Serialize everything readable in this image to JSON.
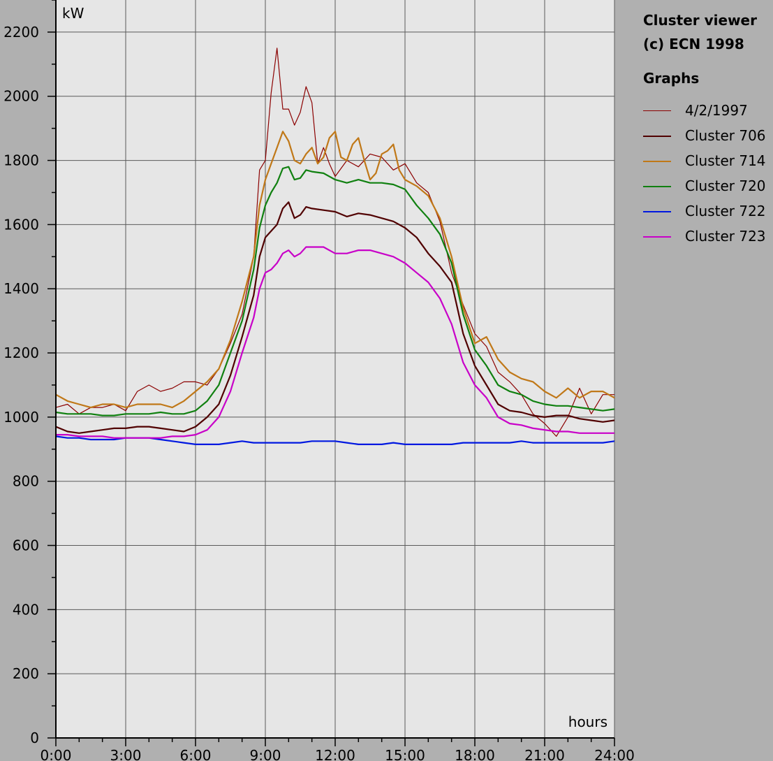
{
  "sidebar": {
    "title_line1": "Cluster viewer",
    "title_line2": "(c) ECN 1998",
    "legend_heading": "Graphs"
  },
  "chart_data": {
    "type": "line",
    "xlabel": "hours",
    "ylabel": "kW",
    "xlim": [
      0,
      24
    ],
    "ylim": [
      0,
      2300
    ],
    "grid": true,
    "legend": "right",
    "x_ticks": [
      0,
      3,
      6,
      9,
      12,
      15,
      18,
      21,
      24
    ],
    "x_tick_labels": [
      "0:00",
      "3:00",
      "6:00",
      "9:00",
      "12:00",
      "15:00",
      "18:00",
      "21:00",
      "24:00"
    ],
    "y_ticks": [
      0,
      200,
      400,
      600,
      800,
      1000,
      1200,
      1400,
      1600,
      1800,
      2000,
      2200
    ],
    "y_tick_labels": [
      "0",
      "200",
      "400",
      "600",
      "800",
      "1000",
      "1200",
      "1400",
      "1600",
      "1800",
      "2000",
      "2200"
    ],
    "series": [
      {
        "name": "4/2/1997",
        "color": "#8b0000",
        "width": 1.2,
        "x": [
          0,
          0.5,
          1,
          1.5,
          2,
          2.5,
          3,
          3.5,
          4,
          4.5,
          5,
          5.5,
          6,
          6.5,
          7,
          7.5,
          8,
          8.5,
          8.75,
          9,
          9.25,
          9.5,
          9.75,
          10,
          10.25,
          10.5,
          10.75,
          11,
          11.25,
          11.5,
          11.75,
          12,
          12.5,
          13,
          13.5,
          14,
          14.5,
          15,
          15.5,
          16,
          16.5,
          17,
          17.5,
          18,
          18.5,
          19,
          19.5,
          20,
          20.5,
          21,
          21.5,
          22,
          22.5,
          23,
          23.5,
          24
        ],
        "y": [
          1030,
          1040,
          1010,
          1030,
          1030,
          1040,
          1020,
          1080,
          1100,
          1080,
          1090,
          1110,
          1110,
          1100,
          1150,
          1230,
          1320,
          1500,
          1770,
          1800,
          2010,
          2150,
          1960,
          1960,
          1910,
          1950,
          2030,
          1980,
          1790,
          1840,
          1790,
          1750,
          1800,
          1780,
          1820,
          1810,
          1770,
          1790,
          1730,
          1700,
          1610,
          1450,
          1350,
          1260,
          1220,
          1140,
          1110,
          1070,
          1010,
          980,
          940,
          1000,
          1090,
          1010,
          1070,
          1070
        ]
      },
      {
        "name": "Cluster 706",
        "color": "#500000",
        "width": 2.2,
        "x": [
          0,
          0.5,
          1,
          1.5,
          2,
          2.5,
          3,
          3.5,
          4,
          4.5,
          5,
          5.5,
          6,
          6.5,
          7,
          7.5,
          8,
          8.5,
          8.75,
          9,
          9.25,
          9.5,
          9.75,
          10,
          10.25,
          10.5,
          10.75,
          11,
          11.5,
          12,
          12.5,
          13,
          13.5,
          14,
          14.5,
          15,
          15.5,
          16,
          16.5,
          17,
          17.5,
          18,
          18.5,
          19,
          19.5,
          20,
          20.5,
          21,
          21.5,
          22,
          22.5,
          23,
          23.5,
          24
        ],
        "y": [
          970,
          955,
          950,
          955,
          960,
          965,
          965,
          970,
          970,
          965,
          960,
          955,
          970,
          1000,
          1040,
          1130,
          1250,
          1380,
          1500,
          1560,
          1580,
          1600,
          1650,
          1670,
          1620,
          1630,
          1655,
          1650,
          1645,
          1640,
          1625,
          1635,
          1630,
          1620,
          1610,
          1590,
          1560,
          1510,
          1470,
          1420,
          1260,
          1160,
          1100,
          1040,
          1020,
          1015,
          1005,
          1000,
          1005,
          1005,
          995,
          990,
          985,
          990
        ]
      },
      {
        "name": "Cluster 714",
        "color": "#c07818",
        "width": 2.2,
        "x": [
          0,
          0.5,
          1,
          1.5,
          2,
          2.5,
          3,
          3.5,
          4,
          4.5,
          5,
          5.5,
          6,
          6.5,
          7,
          7.5,
          8,
          8.5,
          8.75,
          9,
          9.25,
          9.5,
          9.75,
          10,
          10.25,
          10.5,
          10.75,
          11,
          11.25,
          11.5,
          11.75,
          12,
          12.25,
          12.5,
          12.75,
          13,
          13.25,
          13.5,
          13.75,
          14,
          14.25,
          14.5,
          14.75,
          15,
          15.5,
          16,
          16.5,
          17,
          17.5,
          18,
          18.5,
          19,
          19.5,
          20,
          20.5,
          21,
          21.5,
          22,
          22.5,
          23,
          23.5,
          24
        ],
        "y": [
          1070,
          1050,
          1040,
          1030,
          1040,
          1040,
          1030,
          1040,
          1040,
          1040,
          1030,
          1050,
          1080,
          1110,
          1150,
          1240,
          1360,
          1500,
          1660,
          1740,
          1790,
          1840,
          1890,
          1860,
          1800,
          1790,
          1820,
          1840,
          1790,
          1810,
          1870,
          1890,
          1810,
          1800,
          1850,
          1870,
          1800,
          1740,
          1760,
          1820,
          1830,
          1850,
          1770,
          1740,
          1720,
          1690,
          1620,
          1500,
          1340,
          1230,
          1250,
          1180,
          1140,
          1120,
          1110,
          1080,
          1060,
          1090,
          1060,
          1080,
          1080,
          1060
        ]
      },
      {
        "name": "Cluster 720",
        "color": "#108010",
        "width": 2.2,
        "x": [
          0,
          0.5,
          1,
          1.5,
          2,
          2.5,
          3,
          3.5,
          4,
          4.5,
          5,
          5.5,
          6,
          6.5,
          7,
          7.5,
          8,
          8.5,
          8.75,
          9,
          9.25,
          9.5,
          9.75,
          10,
          10.25,
          10.5,
          10.75,
          11,
          11.5,
          12,
          12.5,
          13,
          13.5,
          14,
          14.5,
          15,
          15.5,
          16,
          16.5,
          17,
          17.5,
          18,
          18.5,
          19,
          19.5,
          20,
          20.5,
          21,
          21.5,
          22,
          22.5,
          23,
          23.5,
          24
        ],
        "y": [
          1015,
          1010,
          1010,
          1010,
          1005,
          1005,
          1010,
          1010,
          1010,
          1015,
          1010,
          1010,
          1020,
          1050,
          1100,
          1200,
          1300,
          1460,
          1590,
          1660,
          1700,
          1730,
          1775,
          1780,
          1740,
          1745,
          1770,
          1765,
          1760,
          1740,
          1730,
          1740,
          1730,
          1730,
          1725,
          1710,
          1660,
          1620,
          1570,
          1480,
          1320,
          1210,
          1160,
          1100,
          1080,
          1070,
          1050,
          1040,
          1035,
          1035,
          1030,
          1025,
          1020,
          1025
        ]
      },
      {
        "name": "Cluster 722",
        "color": "#0018e0",
        "width": 2.2,
        "x": [
          0,
          0.5,
          1,
          1.5,
          2,
          2.5,
          3,
          3.5,
          4,
          4.5,
          5,
          5.5,
          6,
          6.5,
          7,
          7.5,
          8,
          8.5,
          9,
          9.5,
          10,
          10.5,
          11,
          11.5,
          12,
          12.5,
          13,
          13.5,
          14,
          14.5,
          15,
          15.5,
          16,
          16.5,
          17,
          17.5,
          18,
          18.5,
          19,
          19.5,
          20,
          20.5,
          21,
          21.5,
          22,
          22.5,
          23,
          23.5,
          24
        ],
        "y": [
          940,
          935,
          935,
          930,
          930,
          930,
          935,
          935,
          935,
          930,
          925,
          920,
          915,
          915,
          915,
          920,
          925,
          920,
          920,
          920,
          920,
          920,
          925,
          925,
          925,
          920,
          915,
          915,
          915,
          920,
          915,
          915,
          915,
          915,
          915,
          920,
          920,
          920,
          920,
          920,
          925,
          920,
          920,
          920,
          920,
          920,
          920,
          920,
          925
        ]
      },
      {
        "name": "Cluster 723",
        "color": "#c800c8",
        "width": 2.2,
        "x": [
          0,
          0.5,
          1,
          1.5,
          2,
          2.5,
          3,
          3.5,
          4,
          4.5,
          5,
          5.5,
          6,
          6.5,
          7,
          7.5,
          8,
          8.5,
          8.75,
          9,
          9.25,
          9.5,
          9.75,
          10,
          10.25,
          10.5,
          10.75,
          11,
          11.5,
          12,
          12.5,
          13,
          13.5,
          14,
          14.5,
          15,
          15.5,
          16,
          16.5,
          17,
          17.5,
          18,
          18.5,
          19,
          19.5,
          20,
          20.5,
          21,
          21.5,
          22,
          22.5,
          23,
          23.5,
          24
        ],
        "y": [
          945,
          945,
          940,
          940,
          940,
          935,
          935,
          935,
          935,
          935,
          940,
          940,
          945,
          960,
          1000,
          1080,
          1200,
          1310,
          1400,
          1450,
          1460,
          1480,
          1510,
          1520,
          1500,
          1510,
          1530,
          1530,
          1530,
          1510,
          1510,
          1520,
          1520,
          1510,
          1500,
          1480,
          1450,
          1420,
          1370,
          1290,
          1170,
          1100,
          1060,
          1000,
          980,
          975,
          965,
          960,
          955,
          955,
          950,
          950,
          950,
          950
        ]
      }
    ]
  }
}
